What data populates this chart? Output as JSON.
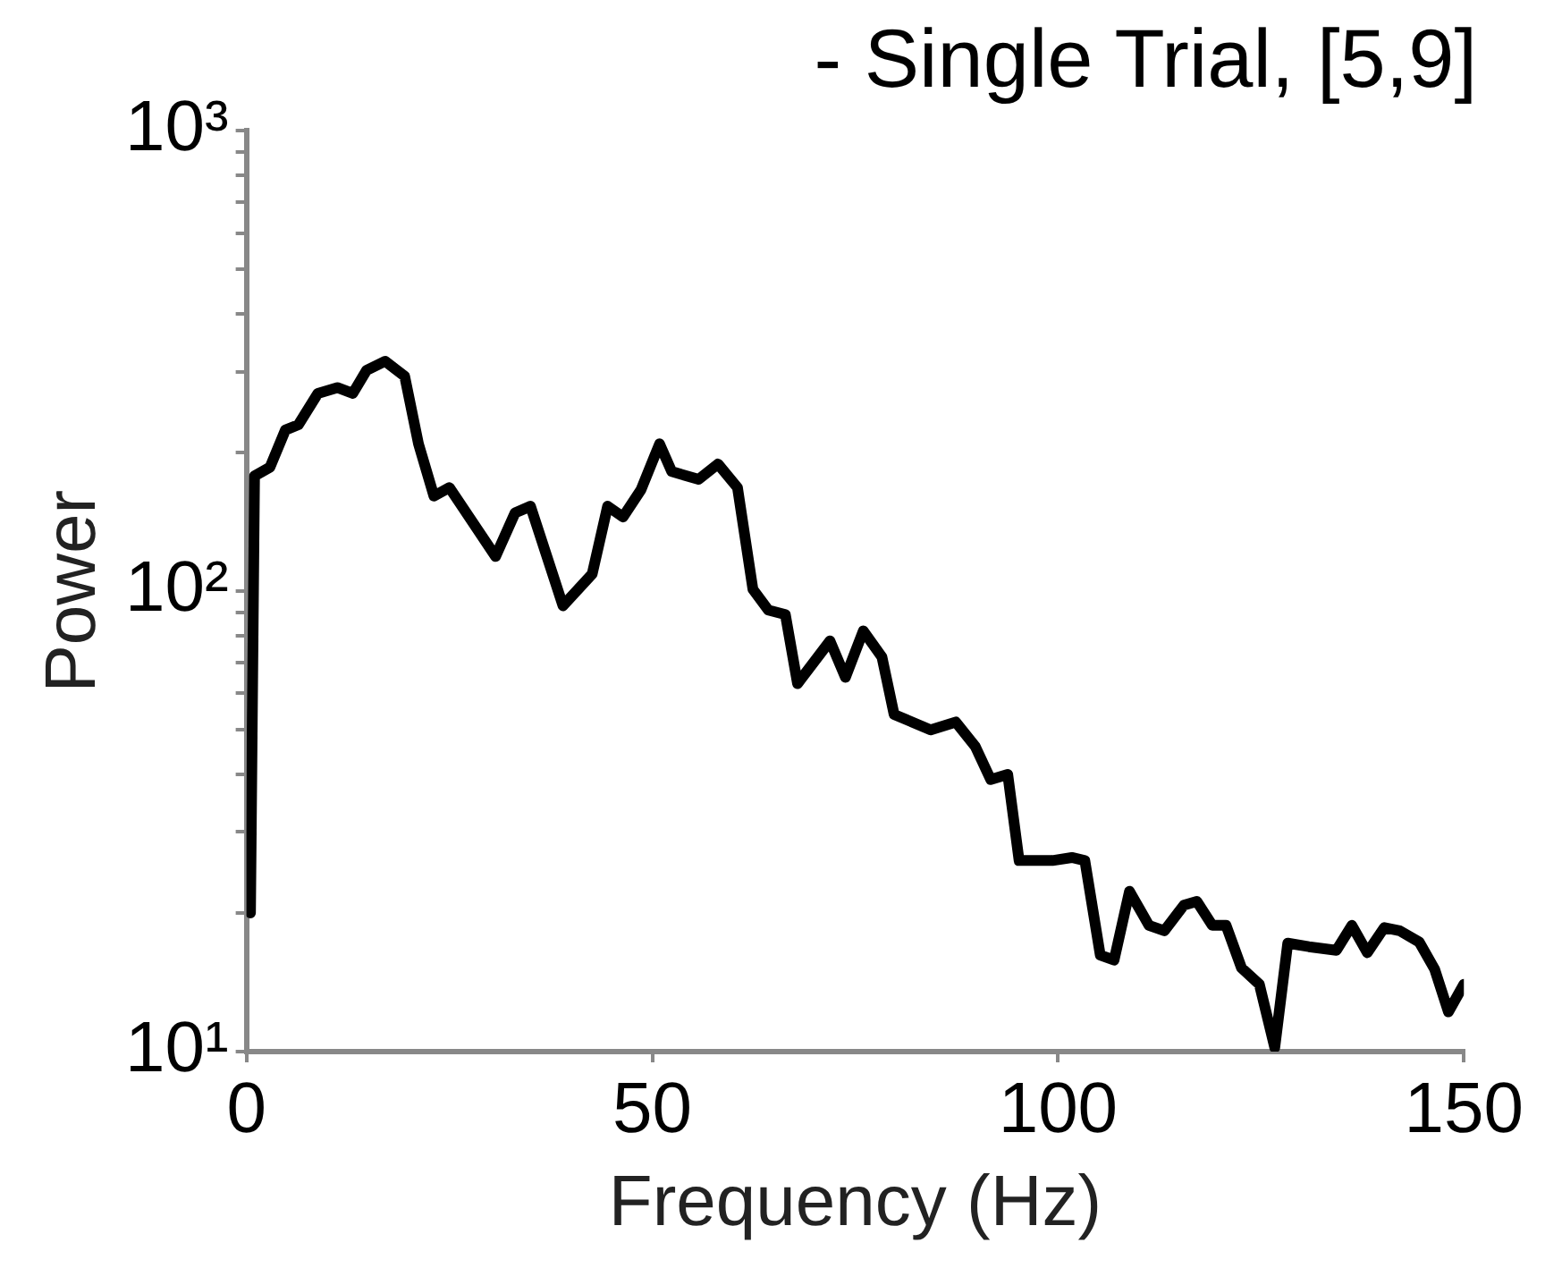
{
  "chart_data": {
    "type": "line",
    "title": "- Single Trial, [5,9]",
    "xlabel": "Frequency (Hz)",
    "ylabel": "Power",
    "log": "y",
    "grid": false,
    "legend": false,
    "marker": "none",
    "line_style": "solid",
    "xlim": [
      0,
      150
    ],
    "xticks": [
      0,
      50,
      100,
      150
    ],
    "ylim": [
      10,
      1000
    ],
    "yticks": [
      {
        "value": 10,
        "label": "10¹"
      },
      {
        "value": 20,
        "label": null
      },
      {
        "value": 30,
        "label": null
      },
      {
        "value": 40,
        "label": null
      },
      {
        "value": 50,
        "label": null
      },
      {
        "value": 60,
        "label": null
      },
      {
        "value": 70,
        "label": null
      },
      {
        "value": 80,
        "label": null
      },
      {
        "value": 90,
        "label": null
      },
      {
        "value": 100,
        "label": "10²"
      },
      {
        "value": 200,
        "label": null
      },
      {
        "value": 300,
        "label": null
      },
      {
        "value": 400,
        "label": null
      },
      {
        "value": 500,
        "label": null
      },
      {
        "value": 600,
        "label": null
      },
      {
        "value": 700,
        "label": null
      },
      {
        "value": 800,
        "label": null
      },
      {
        "value": 900,
        "label": null
      },
      {
        "value": 1000,
        "label": "10³"
      }
    ],
    "series": [
      {
        "color": "#000000",
        "x": [
          0.5,
          1,
          2.9,
          4.8,
          6.4,
          8.8,
          11.2,
          13.1,
          14.8,
          17.1,
          19.5,
          21.2,
          23.1,
          25,
          30.7,
          33.1,
          35,
          39,
          42.6,
          44.5,
          46.4,
          48.6,
          50.9,
          52.4,
          55.7,
          58.1,
          60.5,
          62.4,
          64.3,
          66.4,
          67.9,
          71.9,
          73.8,
          76,
          78.3,
          79.8,
          84.3,
          87.4,
          89.8,
          91.7,
          93.8,
          95.2,
          99.3,
          101.7,
          103.3,
          105.2,
          106.9,
          108.8,
          111.2,
          113.1,
          115.5,
          117.1,
          119,
          120.7,
          122.6,
          124.8,
          126.7,
          128.3,
          130.9,
          134.3,
          136.2,
          138.1,
          140.2,
          142.1,
          144.5,
          146.4,
          148.1,
          150
        ],
        "values": [
          20,
          178,
          186,
          224,
          230,
          269,
          277,
          269,
          302,
          316,
          293,
          209,
          161,
          168,
          119,
          148,
          153,
          93,
          109,
          153,
          145,
          166,
          209,
          182,
          175,
          189,
          168,
          101,
          91,
          89,
          63,
          78,
          65,
          82,
          72,
          54,
          50,
          52,
          46,
          39,
          40,
          26,
          26,
          26.4,
          26,
          16.2,
          15.8,
          22.3,
          18.8,
          18.3,
          20.8,
          21.2,
          18.8,
          18.8,
          15.2,
          14,
          10.2,
          17.2,
          16.9,
          16.6,
          18.8,
          16.4,
          18.6,
          18.3,
          17.3,
          15.1,
          12.2,
          14
        ]
      }
    ]
  }
}
